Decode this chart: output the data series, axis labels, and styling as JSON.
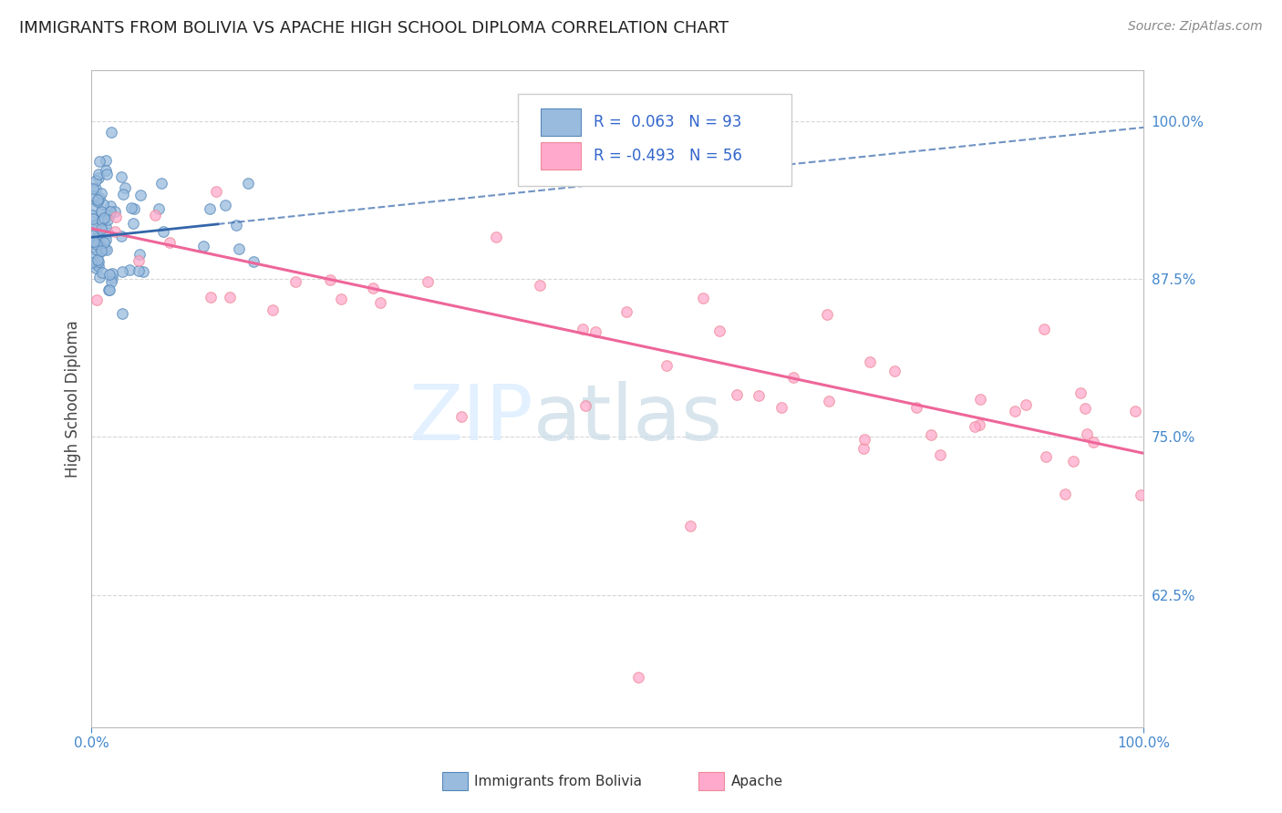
{
  "title": "IMMIGRANTS FROM BOLIVIA VS APACHE HIGH SCHOOL DIPLOMA CORRELATION CHART",
  "source": "Source: ZipAtlas.com",
  "ylabel": "High School Diploma",
  "legend_blue_r": "0.063",
  "legend_blue_n": "93",
  "legend_pink_r": "-0.493",
  "legend_pink_n": "56",
  "legend_label_blue": "Immigrants from Bolivia",
  "legend_label_pink": "Apache",
  "watermark_zip": "ZIP",
  "watermark_atlas": "atlas",
  "right_yticks": [
    1.0,
    0.875,
    0.75,
    0.625
  ],
  "right_ytick_labels": [
    "100.0%",
    "87.5%",
    "75.0%",
    "62.5%"
  ],
  "xmin": 0.0,
  "xmax": 1.0,
  "ymin": 0.52,
  "ymax": 1.04,
  "blue_scatter_color": "#99BBDD",
  "blue_edge_color": "#5588BB",
  "pink_scatter_color": "#FFAACC",
  "pink_edge_color": "#EE8899",
  "blue_line_color": "#3366AA",
  "pink_line_color": "#EE6699",
  "title_fontsize": 13,
  "scatter_size": 70,
  "grid_color": "#CCCCCC",
  "background_color": "#FFFFFF",
  "blue_trend_x0": 0.0,
  "blue_trend_y0": 0.908,
  "blue_trend_x1": 1.0,
  "blue_trend_y1": 0.995,
  "pink_trend_x0": 0.0,
  "pink_trend_y0": 0.915,
  "pink_trend_x1": 1.0,
  "pink_trend_y1": 0.737
}
